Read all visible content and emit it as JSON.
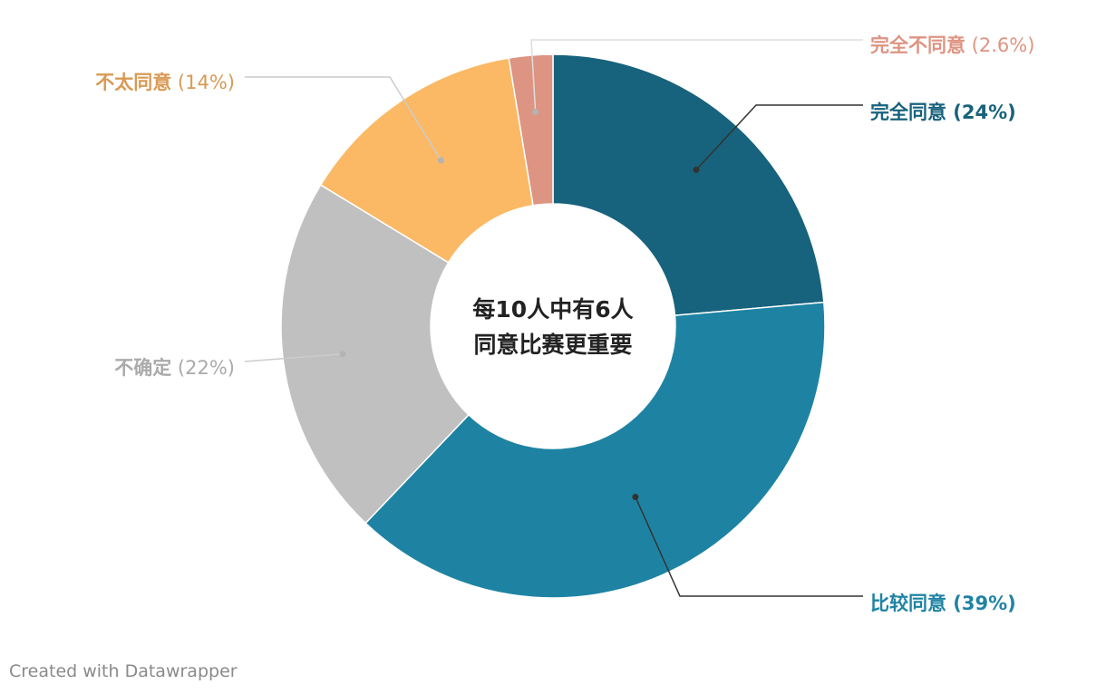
{
  "chart_data": {
    "type": "pie",
    "variant": "donut",
    "center_label": [
      "每10人中有6人",
      "同意比赛更重要"
    ],
    "slices": [
      {
        "name": "完全同意",
        "percent_label": "(24%)",
        "value": 23.6,
        "color": "#17627c",
        "label_color": "#17627c",
        "label_bold_value": true
      },
      {
        "name": "比较同意",
        "percent_label": "(39%)",
        "value": 38.5,
        "color": "#1e83a3",
        "label_color": "#1e83a3",
        "label_bold_value": true
      },
      {
        "name": "不确定",
        "percent_label": "(22%)",
        "value": 21.6,
        "color": "#c0c0c0",
        "label_color": "#aaaaaa",
        "label_bold_value": false
      },
      {
        "name": "不太同意",
        "percent_label": "(14%)",
        "value": 13.7,
        "color": "#fbb965",
        "label_color": "#d89a55",
        "label_bold_value": false
      },
      {
        "name": "完全不同意",
        "percent_label": "(2.6%)",
        "value": 2.6,
        "color": "#de9482",
        "label_color": "#de9482",
        "label_bold_value": false
      }
    ],
    "legend": "direct labels with leader lines"
  },
  "footer": {
    "credit": "Created with Datawrapper"
  }
}
